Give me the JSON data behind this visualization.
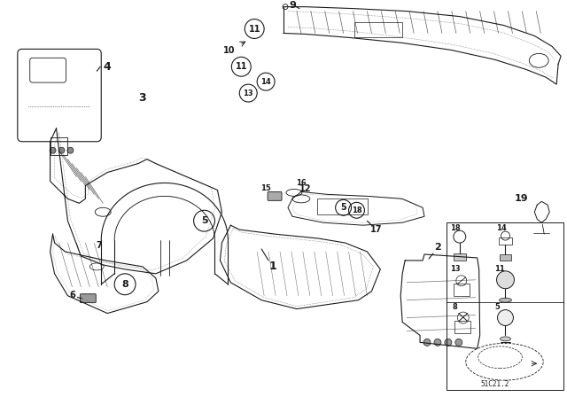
{
  "bg_color": "#ffffff",
  "line_color": "#1a1a1a",
  "diagram_code": "51C21.2",
  "fig_width": 6.4,
  "fig_height": 4.48,
  "dpi": 100
}
